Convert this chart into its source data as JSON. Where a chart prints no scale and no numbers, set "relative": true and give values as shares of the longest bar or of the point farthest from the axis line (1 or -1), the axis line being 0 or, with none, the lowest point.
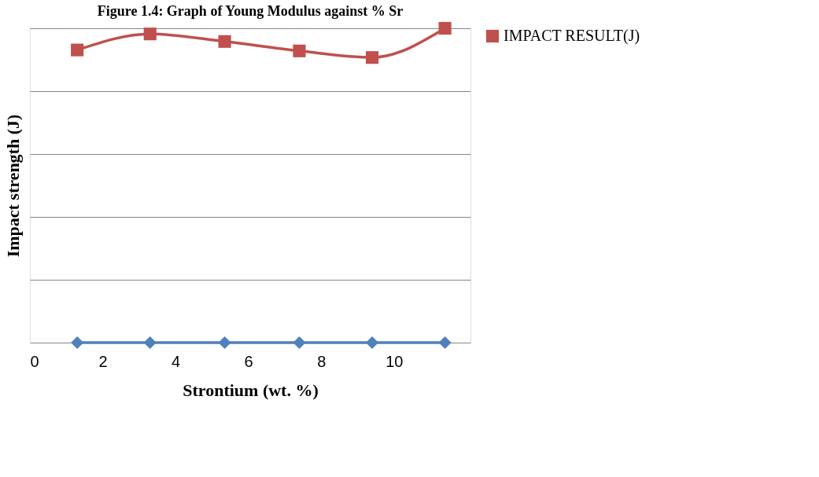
{
  "chart_data": {
    "type": "line",
    "title": "Figure 1.4: Graph of Young Modulus against % Sr",
    "xlabel": "Strontium (wt. %)",
    "ylabel": "Impact strength (J)",
    "relative": true,
    "x": [
      1.3,
      3.3,
      5.35,
      7.4,
      9.4,
      11.4
    ],
    "xlim": [
      0,
      12.1
    ],
    "xticks": [
      0,
      2,
      4,
      6,
      8,
      10
    ],
    "series": [
      {
        "name": "IMPACT RESULT(J)",
        "color": "#c0504d",
        "marker": "square",
        "values": [
          0.931,
          0.982,
          0.958,
          0.928,
          0.907,
          1
        ]
      },
      {
        "color": "#4f81bd",
        "marker": "diamond",
        "values": [
          0,
          0,
          0,
          0,
          0,
          0
        ]
      }
    ],
    "grid": "y",
    "legend": "right",
    "line_style": "solid"
  }
}
